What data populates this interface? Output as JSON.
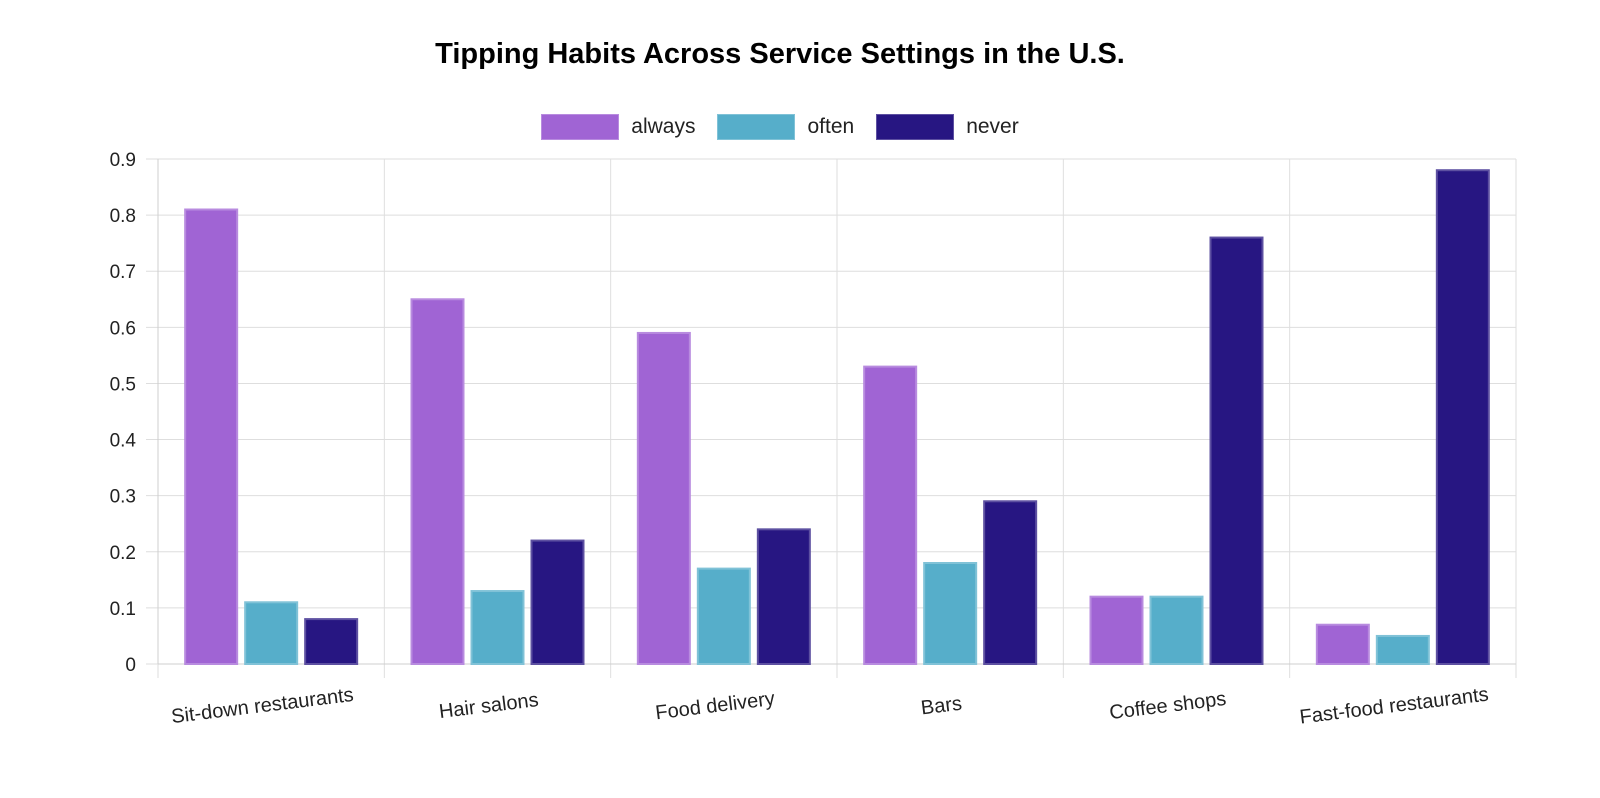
{
  "chart_data": {
    "type": "bar",
    "title": "Tipping Habits Across Service Settings in the U.S.",
    "xlabel": "",
    "ylabel": "",
    "categories": [
      "Sit-down restaurants",
      "Hair salons",
      "Food delivery",
      "Bars",
      "Coffee shops",
      "Fast-food restaurants"
    ],
    "series": [
      {
        "name": "always",
        "color": "#a064d4",
        "values": [
          0.81,
          0.65,
          0.59,
          0.53,
          0.12,
          0.07
        ]
      },
      {
        "name": "often",
        "color": "#56aeca",
        "values": [
          0.11,
          0.13,
          0.17,
          0.18,
          0.12,
          0.05
        ]
      },
      {
        "name": "never",
        "color": "#271682",
        "values": [
          0.08,
          0.22,
          0.24,
          0.29,
          0.76,
          0.88
        ]
      }
    ],
    "ylim": [
      0,
      0.9
    ],
    "yticks": [
      "0",
      "0.1",
      "0.2",
      "0.3",
      "0.4",
      "0.5",
      "0.6",
      "0.7",
      "0.8",
      "0.9"
    ],
    "grid": true,
    "legend_position": "top-center"
  }
}
